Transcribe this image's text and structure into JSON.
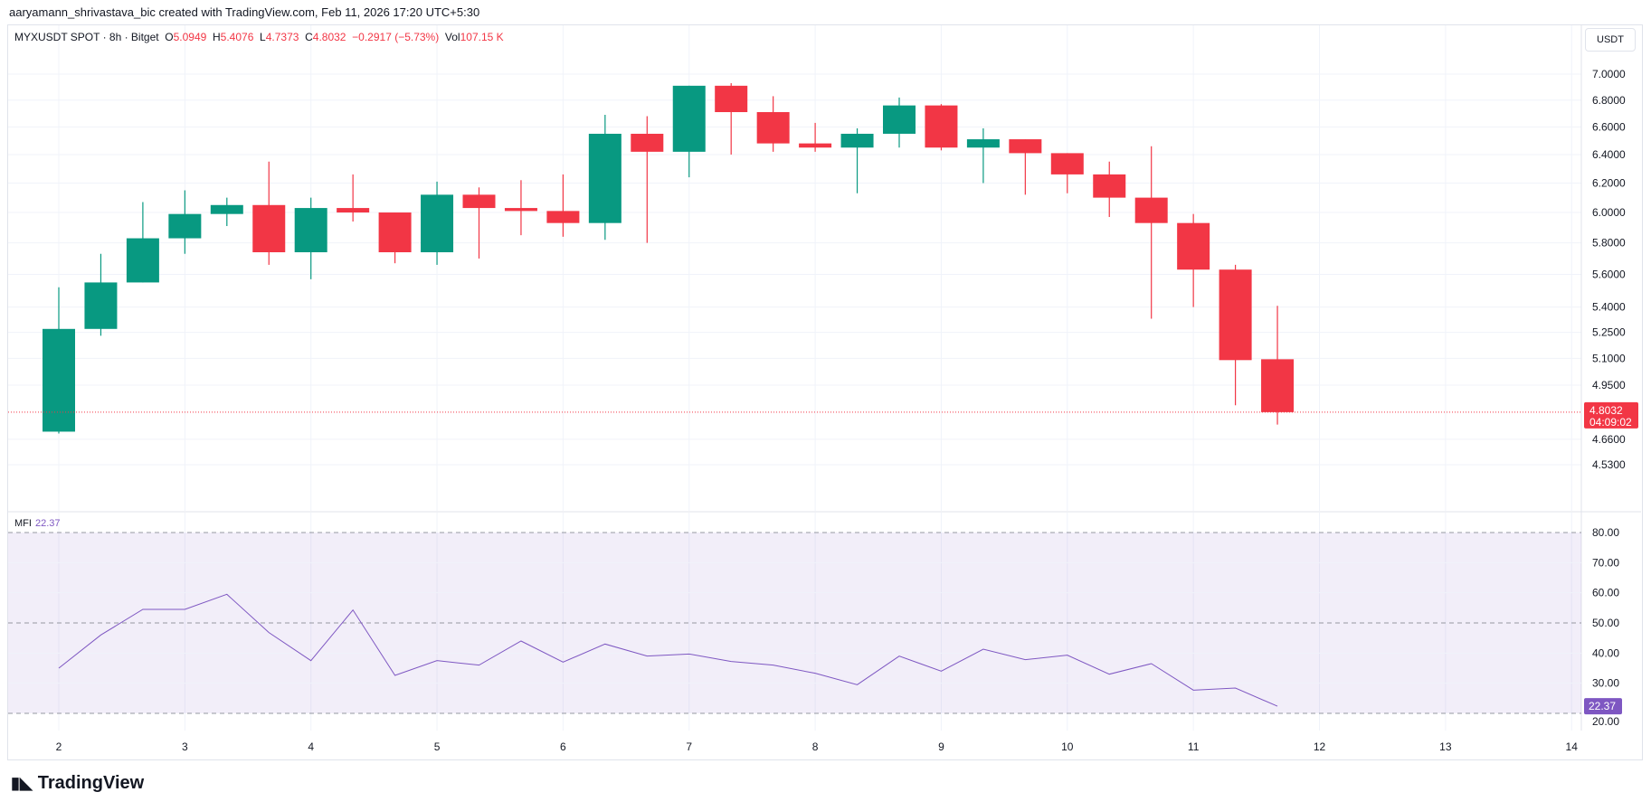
{
  "credit": "aaryamann_shrivastava_bic created with TradingView.com, Feb 11, 2026 17:20 UTC+5:30",
  "legend": {
    "symbol": "MYXUSDT SPOT · 8h · Bitget",
    "o_label": "O",
    "o": "5.0949",
    "h_label": "H",
    "h": "5.4076",
    "l_label": "L",
    "l": "4.7373",
    "c_label": "C",
    "c": "4.8032",
    "change": "−0.2917 (−5.73%)",
    "vol_label": "Vol",
    "vol": "107.15 K"
  },
  "currency_button": "USDT",
  "mfi": {
    "label": "MFI",
    "value": "22.37"
  },
  "brand": "TradingView",
  "colors": {
    "up": "#089981",
    "down": "#f23645",
    "mfi": "#7e57c2"
  },
  "chart_data": [
    {
      "type": "candlestick",
      "scale": "log",
      "ylim": [
        4.53,
        7.0
      ],
      "y_ticks": [
        "7.0000",
        "6.8000",
        "6.6000",
        "6.4000",
        "6.2000",
        "6.0000",
        "5.8000",
        "5.6000",
        "5.4000",
        "5.2500",
        "5.1000",
        "4.9500",
        "4.6600",
        "4.5300"
      ],
      "last_price": "4.8032",
      "countdown": "04:09:02",
      "x_ticks": [
        "2",
        "3",
        "4",
        "5",
        "6",
        "7",
        "8",
        "9",
        "10",
        "11",
        "12",
        "13",
        "14"
      ],
      "grid": true,
      "candles": [
        {
          "o": 4.7,
          "h": 5.52,
          "l": 4.69,
          "c": 5.27
        },
        {
          "o": 5.27,
          "h": 5.73,
          "l": 5.23,
          "c": 5.55
        },
        {
          "o": 5.55,
          "h": 6.07,
          "l": 5.55,
          "c": 5.83
        },
        {
          "o": 5.83,
          "h": 6.15,
          "l": 5.73,
          "c": 5.99
        },
        {
          "o": 5.99,
          "h": 6.1,
          "l": 5.91,
          "c": 6.05
        },
        {
          "o": 6.05,
          "h": 6.35,
          "l": 5.66,
          "c": 5.74
        },
        {
          "o": 5.74,
          "h": 6.1,
          "l": 5.57,
          "c": 6.03
        },
        {
          "o": 6.03,
          "h": 6.26,
          "l": 5.94,
          "c": 6.0
        },
        {
          "o": 6.0,
          "h": 6.0,
          "l": 5.67,
          "c": 5.74
        },
        {
          "o": 5.74,
          "h": 6.21,
          "l": 5.66,
          "c": 6.12
        },
        {
          "o": 6.12,
          "h": 6.17,
          "l": 5.7,
          "c": 6.03
        },
        {
          "o": 6.03,
          "h": 6.22,
          "l": 5.85,
          "c": 6.01
        },
        {
          "o": 6.01,
          "h": 6.26,
          "l": 5.84,
          "c": 5.93
        },
        {
          "o": 5.93,
          "h": 6.69,
          "l": 5.82,
          "c": 6.55
        },
        {
          "o": 6.55,
          "h": 6.68,
          "l": 5.8,
          "c": 6.42
        },
        {
          "o": 6.42,
          "h": 6.91,
          "l": 6.24,
          "c": 6.91
        },
        {
          "o": 6.91,
          "h": 6.93,
          "l": 6.4,
          "c": 6.71
        },
        {
          "o": 6.71,
          "h": 6.83,
          "l": 6.42,
          "c": 6.48
        },
        {
          "o": 6.48,
          "h": 6.63,
          "l": 6.42,
          "c": 6.45
        },
        {
          "o": 6.45,
          "h": 6.59,
          "l": 6.13,
          "c": 6.55
        },
        {
          "o": 6.55,
          "h": 6.82,
          "l": 6.45,
          "c": 6.76
        },
        {
          "o": 6.76,
          "h": 6.77,
          "l": 6.43,
          "c": 6.45
        },
        {
          "o": 6.45,
          "h": 6.59,
          "l": 6.2,
          "c": 6.51
        },
        {
          "o": 6.51,
          "h": 6.51,
          "l": 6.12,
          "c": 6.41
        },
        {
          "o": 6.41,
          "h": 6.41,
          "l": 6.13,
          "c": 6.26
        },
        {
          "o": 6.26,
          "h": 6.35,
          "l": 5.97,
          "c": 6.1
        },
        {
          "o": 6.1,
          "h": 6.46,
          "l": 5.33,
          "c": 5.93
        },
        {
          "o": 5.93,
          "h": 5.99,
          "l": 5.4,
          "c": 5.63
        },
        {
          "o": 5.63,
          "h": 5.66,
          "l": 4.84,
          "c": 5.09
        },
        {
          "o": 5.0949,
          "h": 5.4076,
          "l": 4.7373,
          "c": 4.8032
        }
      ]
    },
    {
      "type": "line",
      "series": [
        {
          "name": "MFI",
          "values": [
            35,
            46,
            54.5,
            54.5,
            59.5,
            46.8,
            37.5,
            54.3,
            32.6,
            37.5,
            36,
            44,
            37,
            43,
            39,
            39.7,
            37.2,
            36,
            33.3,
            29.5,
            39,
            34,
            41.3,
            37.8,
            39.3,
            33,
            36.5,
            27.7,
            28.4,
            22.37
          ]
        }
      ],
      "ylim": [
        20,
        80
      ],
      "y_ticks": [
        "80.00",
        "70.00",
        "60.00",
        "50.00",
        "40.00",
        "30.00",
        "20.00"
      ],
      "band": [
        20,
        80
      ],
      "midline": 50
    }
  ]
}
